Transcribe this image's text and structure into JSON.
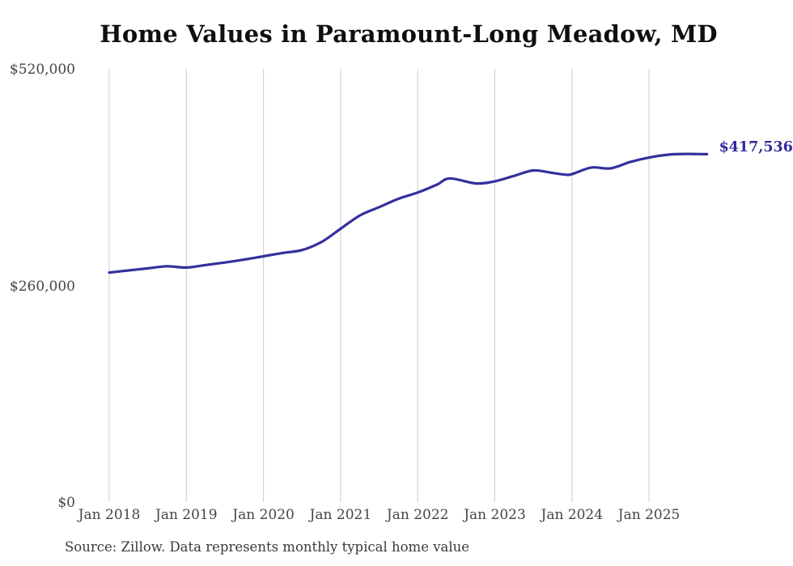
{
  "header": {
    "title": "Home Values in Paramount-Long Meadow, MD"
  },
  "footer": {
    "source_note": "Source: Zillow. Data represents monthly typical home value"
  },
  "colors": {
    "line": "#33309e",
    "end_label": "#2f2b9d",
    "gridline": "#cccccc",
    "tick_label": "#454545",
    "title": "#0f0f0f",
    "background": "#ffffff"
  },
  "chart_data": {
    "type": "line",
    "title": "Home Values in Paramount-Long Meadow, MD",
    "xlabel": "",
    "ylabel": "",
    "ylim": [
      0,
      520000
    ],
    "grid": "vertical-only",
    "legend": "none",
    "end_label": "$417,536",
    "y_ticks": [
      {
        "label": "$0",
        "value": 0
      },
      {
        "label": "$260,000",
        "value": 260000
      },
      {
        "label": "$520,000",
        "value": 520000
      }
    ],
    "x_ticks": [
      {
        "label": "Jan 2018",
        "date": "2018-01"
      },
      {
        "label": "Jan 2019",
        "date": "2019-01"
      },
      {
        "label": "Jan 2020",
        "date": "2020-01"
      },
      {
        "label": "Jan 2021",
        "date": "2021-01"
      },
      {
        "label": "Jan 2022",
        "date": "2022-01"
      },
      {
        "label": "Jan 2023",
        "date": "2023-01"
      },
      {
        "label": "Jan 2024",
        "date": "2024-01"
      },
      {
        "label": "Jan 2025",
        "date": "2025-01"
      }
    ],
    "series": [
      {
        "name": "Monthly typical home value",
        "points": [
          {
            "date": "2018-01",
            "value": 275500
          },
          {
            "date": "2018-04",
            "value": 278000
          },
          {
            "date": "2018-07",
            "value": 280500
          },
          {
            "date": "2018-10",
            "value": 283000
          },
          {
            "date": "2019-01",
            "value": 281500
          },
          {
            "date": "2019-04",
            "value": 284500
          },
          {
            "date": "2019-07",
            "value": 287500
          },
          {
            "date": "2019-10",
            "value": 291000
          },
          {
            "date": "2020-01",
            "value": 295000
          },
          {
            "date": "2020-04",
            "value": 299000
          },
          {
            "date": "2020-07",
            "value": 302500
          },
          {
            "date": "2020-10",
            "value": 312000
          },
          {
            "date": "2021-01",
            "value": 328000
          },
          {
            "date": "2021-04",
            "value": 344000
          },
          {
            "date": "2021-07",
            "value": 354000
          },
          {
            "date": "2021-10",
            "value": 364000
          },
          {
            "date": "2022-01",
            "value": 371500
          },
          {
            "date": "2022-04",
            "value": 381000
          },
          {
            "date": "2022-06",
            "value": 388500
          },
          {
            "date": "2022-10",
            "value": 382500
          },
          {
            "date": "2023-01",
            "value": 385000
          },
          {
            "date": "2023-04",
            "value": 391500
          },
          {
            "date": "2023-07",
            "value": 398000
          },
          {
            "date": "2023-10",
            "value": 395000
          },
          {
            "date": "2023-12",
            "value": 393000
          },
          {
            "date": "2024-01",
            "value": 393500
          },
          {
            "date": "2024-04",
            "value": 401500
          },
          {
            "date": "2024-07",
            "value": 400500
          },
          {
            "date": "2024-10",
            "value": 408000
          },
          {
            "date": "2025-01",
            "value": 413500
          },
          {
            "date": "2025-04",
            "value": 417000
          },
          {
            "date": "2025-07",
            "value": 417800
          },
          {
            "date": "2025-10",
            "value": 417536
          }
        ]
      }
    ]
  }
}
